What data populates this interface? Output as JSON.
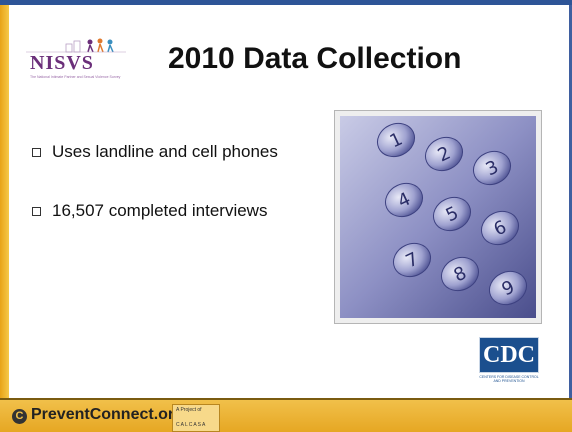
{
  "logo": {
    "name": "NISVS",
    "subtitle": "The National Intimate Partner and Sexual Violence Survey"
  },
  "title": "2010 Data Collection",
  "bullets": [
    "Uses landline and cell phones",
    "16,507 completed interviews"
  ],
  "phone_keys": [
    "1",
    "2",
    "3",
    "4",
    "5",
    "6",
    "7",
    "8",
    "9"
  ],
  "cdc": {
    "name": "CDC",
    "subtitle": "CENTERS FOR DISEASE CONTROL AND PREVENTION"
  },
  "footer": {
    "site": "PreventConnect.org",
    "project_of": "A Project of",
    "project": "CALCASA"
  }
}
